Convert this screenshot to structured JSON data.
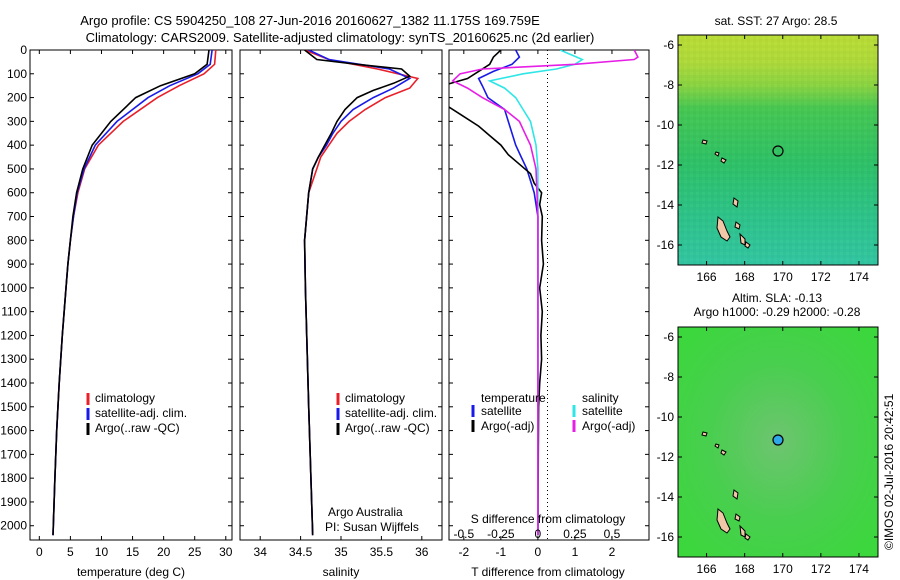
{
  "title": {
    "line1": "Argo profile: CS 5904250_108 27-Jun-2016 20160627_1382 11.175S 169.759E",
    "line2": "Climatology: CARS2009. Satellite-adjusted climatology: synTS_20160625.nc (2d earlier)"
  },
  "colors": {
    "climatology": "#e8202a",
    "satellite": "#1a1ae8",
    "argo": "#000000",
    "sat_salinity": "#2ee6e6",
    "argo_salinity": "#e61ee6"
  },
  "credit": {
    "institution": "Argo Australia",
    "pi": "PI: Susan Wijffels"
  },
  "stamp": "©IMOS 02-Jul-2016 20:42:51",
  "chart_data": [
    {
      "type": "line",
      "title": "",
      "xlabel": "temperature (deg C)",
      "ylabel": "",
      "xlim": [
        -1.5,
        31
      ],
      "ylim": [
        2060,
        0
      ],
      "x_ticks": [
        0,
        5,
        10,
        15,
        20,
        25,
        30
      ],
      "y_ticks": [
        0,
        100,
        200,
        300,
        400,
        500,
        600,
        700,
        800,
        900,
        1000,
        1100,
        1200,
        1300,
        1400,
        1500,
        1600,
        1700,
        1800,
        1900,
        2000
      ],
      "legend": {
        "entries": [
          "climatology",
          "satellite-adj. clim.",
          "Argo(..raw -QC)"
        ],
        "placement": "lower-center"
      },
      "series": [
        {
          "name": "climatology",
          "color": "#e8202a",
          "depth": [
            0,
            60,
            100,
            150,
            200,
            300,
            400,
            500,
            600,
            700,
            800,
            900,
            1000,
            1200,
            1400,
            1600,
            1800,
            2040
          ],
          "values": [
            28.4,
            28.2,
            26.5,
            22.5,
            19,
            13.5,
            9.5,
            7.3,
            6.2,
            5.5,
            5.0,
            4.6,
            4.3,
            3.7,
            3.2,
            2.8,
            2.5,
            2.2
          ]
        },
        {
          "name": "satellite-adj. clim.",
          "color": "#1a1ae8",
          "depth": [
            0,
            60,
            100,
            150,
            200,
            300,
            400,
            500,
            600,
            700,
            800,
            900,
            1000,
            1200,
            1400,
            1600,
            1800,
            2040
          ],
          "values": [
            27.8,
            27.5,
            25.5,
            21,
            17.5,
            12.5,
            9,
            7.2,
            6.1,
            5.5,
            5.0,
            4.6,
            4.3,
            3.7,
            3.2,
            2.8,
            2.5,
            2.2
          ]
        },
        {
          "name": "Argo(..raw -QC)",
          "color": "#000000",
          "depth": [
            0,
            60,
            100,
            150,
            200,
            300,
            400,
            500,
            600,
            700,
            800,
            900,
            1000,
            1200,
            1400,
            1600,
            1800,
            2040
          ],
          "values": [
            27.3,
            27,
            25,
            19.5,
            15.5,
            11.5,
            8.5,
            7.0,
            6.0,
            5.4,
            5.0,
            4.6,
            4.3,
            3.7,
            3.2,
            2.8,
            2.5,
            2.2
          ]
        }
      ]
    },
    {
      "type": "line",
      "title": "",
      "xlabel": "salinity",
      "ylabel": "",
      "xlim": [
        33.75,
        36.25
      ],
      "ylim": [
        2060,
        0
      ],
      "x_ticks": [
        34,
        34.5,
        35,
        35.5,
        36
      ],
      "legend": {
        "entries": [
          "climatology",
          "satellite-adj. clim.",
          "Argo(..raw -QC)"
        ],
        "placement": "lower-center"
      },
      "series": [
        {
          "name": "climatology",
          "color": "#e8202a",
          "depth": [
            0,
            40,
            80,
            120,
            160,
            200,
            250,
            300,
            350,
            400,
            450,
            500,
            600,
            800,
            1000,
            1500,
            2040
          ],
          "values": [
            34.55,
            34.85,
            35.45,
            35.95,
            35.85,
            35.55,
            35.3,
            35.1,
            34.95,
            34.85,
            34.75,
            34.7,
            34.6,
            34.55,
            34.56,
            34.6,
            34.65
          ]
        },
        {
          "name": "satellite-adj. clim.",
          "color": "#1a1ae8",
          "depth": [
            0,
            40,
            80,
            120,
            160,
            200,
            250,
            300,
            350,
            400,
            450,
            500,
            600,
            800,
            1000,
            1500,
            2040
          ],
          "values": [
            34.6,
            34.85,
            35.6,
            35.85,
            35.65,
            35.4,
            35.15,
            35.0,
            34.9,
            34.82,
            34.72,
            34.65,
            34.6,
            34.55,
            34.56,
            34.6,
            34.65
          ]
        },
        {
          "name": "Argo(..raw -QC)",
          "color": "#000000",
          "depth": [
            0,
            40,
            60,
            80,
            110,
            140,
            170,
            200,
            250,
            300,
            350,
            400,
            450,
            500,
            600,
            800,
            1000,
            1500,
            2040
          ],
          "values": [
            34.55,
            34.7,
            35.2,
            35.75,
            35.85,
            35.65,
            35.4,
            35.2,
            35.05,
            34.95,
            34.88,
            34.8,
            34.72,
            34.65,
            34.6,
            34.55,
            34.56,
            34.6,
            34.65
          ]
        }
      ]
    },
    {
      "type": "line",
      "title": "",
      "xlabel": "T difference from climatology",
      "ylabel": "",
      "xlim": [
        -2.4,
        3.0
      ],
      "ylim": [
        2060,
        0
      ],
      "top_axis_label": "S difference from climatology",
      "top_ticks": [
        -0.5,
        -0.25,
        0,
        0.25,
        0.5
      ],
      "x_ticks": [
        -2,
        -1,
        0,
        1,
        2
      ],
      "x_tick_labels": [
        "-2",
        "-1",
        "0",
        "1",
        "2"
      ],
      "legend": {
        "entries": [
          "temperature",
          "satellite",
          "Argo(-adj)",
          "salinity",
          "satellite",
          "Argo(-adj)"
        ],
        "placement": "lower"
      },
      "series": [
        {
          "name": "satellite",
          "color": "#1a1ae8",
          "depth": [
            0,
            30,
            60,
            90,
            120,
            150,
            200,
            250,
            300,
            350,
            400,
            450,
            500,
            550,
            600,
            700,
            800,
            1000,
            1500,
            2040
          ],
          "values": [
            -0.6,
            -0.5,
            -0.7,
            -1.2,
            -1.6,
            -1.5,
            -1.35,
            -0.9,
            -0.8,
            -0.7,
            -0.6,
            -0.45,
            -0.3,
            -0.2,
            -0.1,
            0,
            0,
            0,
            0,
            0
          ]
        },
        {
          "name": "Argo(-adj)",
          "color": "#000000",
          "depth": [
            0,
            30,
            60,
            90,
            120,
            160,
            200,
            240,
            280,
            320,
            360,
            400,
            440,
            480,
            520,
            560,
            600,
            650,
            700,
            800,
            900,
            1000,
            1100,
            1200,
            1300,
            1400,
            1500,
            1700,
            2040
          ],
          "values": [
            -1.0,
            -1.2,
            -1.3,
            -1.6,
            -1.9,
            -2.8,
            -2.9,
            -2.4,
            -2.0,
            -1.6,
            -1.3,
            -1.0,
            -0.8,
            -0.5,
            -0.2,
            -0.1,
            0.1,
            0.05,
            0.12,
            0.1,
            0.15,
            0.05,
            0.12,
            0.08,
            0.1,
            0.05,
            0.02,
            0.01,
            0
          ]
        },
        {
          "name": "salinity satellite",
          "color": "#2ee6e6",
          "depth": [
            0,
            40,
            60,
            80,
            100,
            130,
            160,
            200,
            250,
            300,
            400,
            500,
            700,
            1000,
            1500,
            2040
          ],
          "values": [
            0.6,
            1.2,
            1.0,
            0.5,
            -0.4,
            -1.3,
            -0.9,
            -0.6,
            -0.4,
            -0.2,
            -0.05,
            0,
            0,
            0,
            0,
            0
          ]
        },
        {
          "name": "salinity Argo(-adj)",
          "color": "#e61ee6",
          "depth": [
            0,
            30,
            40,
            60,
            80,
            100,
            130,
            160,
            200,
            250,
            300,
            350,
            400,
            500,
            700,
            1000,
            1500,
            2040
          ],
          "values": [
            2.6,
            2.7,
            2.6,
            1.0,
            -1.5,
            -2.1,
            -2.3,
            -1.9,
            -1.5,
            -0.9,
            -0.5,
            -0.35,
            -0.2,
            -0.05,
            0,
            0,
            0,
            0
          ]
        }
      ]
    },
    {
      "type": "heatmap",
      "title": "sat. SST: 27 Argo: 28.5",
      "xlim": [
        164.5,
        175
      ],
      "ylim": [
        -17,
        -5.5
      ],
      "x_ticks": [
        166,
        168,
        170,
        172,
        174
      ],
      "y_ticks": [
        -6,
        -8,
        -10,
        -12,
        -14,
        -16
      ],
      "marker": {
        "lon": 169.759,
        "lat": -11.175
      }
    },
    {
      "type": "heatmap",
      "title": "Altim. SLA: -0.13",
      "subtitle": "Argo h1000: -0.29 h2000: -0.28",
      "xlim": [
        164.5,
        175
      ],
      "ylim": [
        -17,
        -5.5
      ],
      "x_ticks": [
        166,
        168,
        170,
        172,
        174
      ],
      "y_ticks": [
        -6,
        -8,
        -10,
        -12,
        -14,
        -16
      ],
      "marker": {
        "lon": 169.759,
        "lat": -11.175
      }
    }
  ]
}
